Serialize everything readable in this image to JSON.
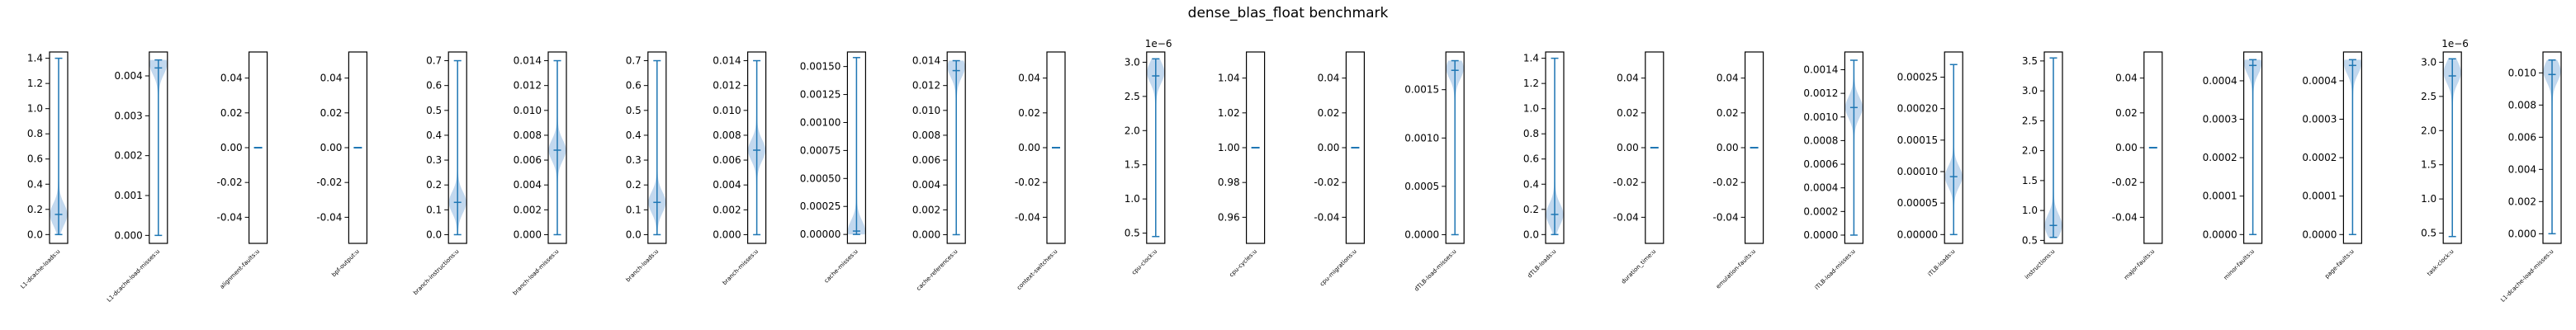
{
  "chart_data": {
    "type": "violin",
    "title": "dense_blas_float benchmark",
    "colors": {
      "violin": "#1f77b4",
      "fill": "#aecbe8",
      "frame": "#000000"
    },
    "panels": [
      {
        "label": "L1-dcache-loads:u",
        "ylim": [
          -0.07,
          1.45
        ],
        "ticks": [
          0.0,
          0.2,
          0.4,
          0.6,
          0.8,
          1.0,
          1.2,
          1.4
        ],
        "tick_labels": [
          "0.0",
          "0.2",
          "0.4",
          "0.6",
          "0.8",
          "1.0",
          "1.2",
          "1.4"
        ],
        "exponent": "",
        "min": 0.0,
        "max": 1.4,
        "median": 0.16,
        "mode": 0.16
      },
      {
        "label": "L1-dcache-load-misses:u",
        "ylim": [
          -0.0002,
          0.0046
        ],
        "ticks": [
          0.0,
          0.001,
          0.002,
          0.003,
          0.004
        ],
        "tick_labels": [
          "0.000",
          "0.001",
          "0.002",
          "0.003",
          "0.004"
        ],
        "exponent": "",
        "min": 0.0,
        "max": 0.0044,
        "median": 0.0042,
        "mode": 0.0043
      },
      {
        "label": "alignment-faults:u",
        "ylim": [
          -0.055,
          0.055
        ],
        "ticks": [
          -0.04,
          -0.02,
          0.0,
          0.02,
          0.04
        ],
        "tick_labels": [
          "-0.04",
          "-0.02",
          "0.00",
          "0.02",
          "0.04"
        ],
        "exponent": "",
        "min": 0.0,
        "max": 0.0,
        "median": 0.0,
        "mode": 0.0
      },
      {
        "label": "bpf-output:u",
        "ylim": [
          -0.055,
          0.055
        ],
        "ticks": [
          -0.04,
          -0.02,
          0.0,
          0.02,
          0.04
        ],
        "tick_labels": [
          "-0.04",
          "-0.02",
          "0.00",
          "0.02",
          "0.04"
        ],
        "exponent": "",
        "min": 0.0,
        "max": 0.0,
        "median": 0.0,
        "mode": 0.0
      },
      {
        "label": "branch-instructions:u",
        "ylim": [
          -0.035,
          0.735
        ],
        "ticks": [
          0.0,
          0.1,
          0.2,
          0.3,
          0.4,
          0.5,
          0.6,
          0.7
        ],
        "tick_labels": [
          "0.0",
          "0.1",
          "0.2",
          "0.3",
          "0.4",
          "0.5",
          "0.6",
          "0.7"
        ],
        "exponent": "",
        "min": 0.0,
        "max": 0.7,
        "median": 0.13,
        "mode": 0.13
      },
      {
        "label": "branch-load-misses:u",
        "ylim": [
          -0.0007,
          0.0147
        ],
        "ticks": [
          0.0,
          0.002,
          0.004,
          0.006,
          0.008,
          0.01,
          0.012,
          0.014
        ],
        "tick_labels": [
          "0.000",
          "0.002",
          "0.004",
          "0.006",
          "0.008",
          "0.010",
          "0.012",
          "0.014"
        ],
        "exponent": "",
        "min": 0.0,
        "max": 0.014,
        "median": 0.0068,
        "mode": 0.0068
      },
      {
        "label": "branch-loads:u",
        "ylim": [
          -0.035,
          0.735
        ],
        "ticks": [
          0.0,
          0.1,
          0.2,
          0.3,
          0.4,
          0.5,
          0.6,
          0.7
        ],
        "tick_labels": [
          "0.0",
          "0.1",
          "0.2",
          "0.3",
          "0.4",
          "0.5",
          "0.6",
          "0.7"
        ],
        "exponent": "",
        "min": 0.0,
        "max": 0.7,
        "median": 0.13,
        "mode": 0.13
      },
      {
        "label": "branch-misses:u",
        "ylim": [
          -0.0007,
          0.0147
        ],
        "ticks": [
          0.0,
          0.002,
          0.004,
          0.006,
          0.008,
          0.01,
          0.012,
          0.014
        ],
        "tick_labels": [
          "0.000",
          "0.002",
          "0.004",
          "0.006",
          "0.008",
          "0.010",
          "0.012",
          "0.014"
        ],
        "exponent": "",
        "min": 0.0,
        "max": 0.014,
        "median": 0.0068,
        "mode": 0.0068
      },
      {
        "label": "cache-misses:u",
        "ylim": [
          -8e-05,
          0.00163
        ],
        "ticks": [
          0.0,
          0.00025,
          0.0005,
          0.00075,
          0.001,
          0.00125,
          0.0015
        ],
        "tick_labels": [
          "0.00000",
          "0.00025",
          "0.00050",
          "0.00075",
          "0.00100",
          "0.00125",
          "0.00150"
        ],
        "exponent": "",
        "min": 0.0,
        "max": 0.00158,
        "median": 3e-05,
        "mode": 3e-05
      },
      {
        "label": "cache-references:u",
        "ylim": [
          -0.0007,
          0.0147
        ],
        "ticks": [
          0.0,
          0.002,
          0.004,
          0.006,
          0.008,
          0.01,
          0.012,
          0.014
        ],
        "tick_labels": [
          "0.000",
          "0.002",
          "0.004",
          "0.006",
          "0.008",
          "0.010",
          "0.012",
          "0.014"
        ],
        "exponent": "",
        "min": 0.0,
        "max": 0.014,
        "median": 0.0132,
        "mode": 0.0135
      },
      {
        "label": "context-switches:u",
        "ylim": [
          -0.055,
          0.055
        ],
        "ticks": [
          -0.04,
          -0.02,
          0.0,
          0.02,
          0.04
        ],
        "tick_labels": [
          "-0.04",
          "-0.02",
          "0.00",
          "0.02",
          "0.04"
        ],
        "exponent": "",
        "min": 0.0,
        "max": 0.0,
        "median": 0.0,
        "mode": 0.0
      },
      {
        "label": "cpu-clock:u",
        "ylim": [
          0.35,
          3.15
        ],
        "ticks": [
          0.5,
          1.0,
          1.5,
          2.0,
          2.5,
          3.0
        ],
        "tick_labels": [
          "0.5",
          "1.0",
          "1.5",
          "2.0",
          "2.5",
          "3.0"
        ],
        "exponent": "1e−6",
        "min": 0.45,
        "max": 3.05,
        "median": 2.8,
        "mode": 2.85
      },
      {
        "label": "cpu-cycles:u",
        "ylim": [
          0.945,
          1.055
        ],
        "ticks": [
          0.96,
          0.98,
          1.0,
          1.02,
          1.04
        ],
        "tick_labels": [
          "0.96",
          "0.98",
          "1.00",
          "1.02",
          "1.04"
        ],
        "exponent": "",
        "min": 1.0,
        "max": 1.0,
        "median": 1.0,
        "mode": 1.0
      },
      {
        "label": "cpu-migrations:u",
        "ylim": [
          -0.055,
          0.055
        ],
        "ticks": [
          -0.04,
          -0.02,
          0.0,
          0.02,
          0.04
        ],
        "tick_labels": [
          "-0.04",
          "-0.02",
          "0.00",
          "0.02",
          "0.04"
        ],
        "exponent": "",
        "min": 0.0,
        "max": 0.0,
        "median": 0.0,
        "mode": 0.0
      },
      {
        "label": "dTLB-load-misses:u",
        "ylim": [
          -9e-05,
          0.00189
        ],
        "ticks": [
          0.0,
          0.0005,
          0.001,
          0.0015
        ],
        "tick_labels": [
          "0.0000",
          "0.0005",
          "0.0010",
          "0.0015"
        ],
        "exponent": "",
        "min": 0.0,
        "max": 0.0018,
        "median": 0.0017,
        "mode": 0.00172
      },
      {
        "label": "dTLB-loads:u",
        "ylim": [
          -0.07,
          1.45
        ],
        "ticks": [
          0.0,
          0.2,
          0.4,
          0.6,
          0.8,
          1.0,
          1.2,
          1.4
        ],
        "tick_labels": [
          "0.0",
          "0.2",
          "0.4",
          "0.6",
          "0.8",
          "1.0",
          "1.2",
          "1.4"
        ],
        "exponent": "",
        "min": 0.0,
        "max": 1.4,
        "median": 0.16,
        "mode": 0.16
      },
      {
        "label": "duration_time:u",
        "ylim": [
          -0.055,
          0.055
        ],
        "ticks": [
          -0.04,
          -0.02,
          0.0,
          0.02,
          0.04
        ],
        "tick_labels": [
          "-0.04",
          "-0.02",
          "0.00",
          "0.02",
          "0.04"
        ],
        "exponent": "",
        "min": 0.0,
        "max": 0.0,
        "median": 0.0,
        "mode": 0.0
      },
      {
        "label": "emulation-faults:u",
        "ylim": [
          -0.055,
          0.055
        ],
        "ticks": [
          -0.04,
          -0.02,
          0.0,
          0.02,
          0.04
        ],
        "tick_labels": [
          "-0.04",
          "-0.02",
          "0.00",
          "0.02",
          "0.04"
        ],
        "exponent": "",
        "min": 0.0,
        "max": 0.0,
        "median": 0.0,
        "mode": 0.0
      },
      {
        "label": "iTLB-load-misses:u",
        "ylim": [
          -7e-05,
          0.00155
        ],
        "ticks": [
          0.0,
          0.0002,
          0.0004,
          0.0006,
          0.0008,
          0.001,
          0.0012,
          0.0014
        ],
        "tick_labels": [
          "0.0000",
          "0.0002",
          "0.0004",
          "0.0006",
          "0.0008",
          "0.0010",
          "0.0012",
          "0.0014"
        ],
        "exponent": "",
        "min": 0.0,
        "max": 0.00148,
        "median": 0.00108,
        "mode": 0.00108
      },
      {
        "label": "iTLB-loads:u",
        "ylim": [
          -1.4e-05,
          0.00029
        ],
        "ticks": [
          0.0,
          5e-05,
          0.0001,
          0.00015,
          0.0002,
          0.00025
        ],
        "tick_labels": [
          "0.00000",
          "0.00005",
          "0.00010",
          "0.00015",
          "0.00020",
          "0.00025"
        ],
        "exponent": "",
        "min": 0.0,
        "max": 0.00027,
        "median": 9.2e-05,
        "mode": 9.2e-05
      },
      {
        "label": "instructions:u",
        "ylim": [
          0.45,
          3.65
        ],
        "ticks": [
          0.5,
          1.0,
          1.5,
          2.0,
          2.5,
          3.0,
          3.5
        ],
        "tick_labels": [
          "0.5",
          "1.0",
          "1.5",
          "2.0",
          "2.5",
          "3.0",
          "3.5"
        ],
        "exponent": "",
        "min": 0.55,
        "max": 3.55,
        "median": 0.75,
        "mode": 0.75
      },
      {
        "label": "major-faults:u",
        "ylim": [
          -0.055,
          0.055
        ],
        "ticks": [
          -0.04,
          -0.02,
          0.0,
          0.02,
          0.04
        ],
        "tick_labels": [
          "-0.04",
          "-0.02",
          "0.00",
          "0.02",
          "0.04"
        ],
        "exponent": "",
        "min": 0.0,
        "max": 0.0,
        "median": 0.0,
        "mode": 0.0
      },
      {
        "label": "minor-faults:u",
        "ylim": [
          -2.3e-05,
          0.000475
        ],
        "ticks": [
          0.0,
          0.0001,
          0.0002,
          0.0003,
          0.0004
        ],
        "tick_labels": [
          "0.0000",
          "0.0001",
          "0.0002",
          "0.0003",
          "0.0004"
        ],
        "exponent": "",
        "min": 0.0,
        "max": 0.000455,
        "median": 0.00044,
        "mode": 0.000445
      },
      {
        "label": "page-faults:u",
        "ylim": [
          -2.3e-05,
          0.000475
        ],
        "ticks": [
          0.0,
          0.0001,
          0.0002,
          0.0003,
          0.0004
        ],
        "tick_labels": [
          "0.0000",
          "0.0001",
          "0.0002",
          "0.0003",
          "0.0004"
        ],
        "exponent": "",
        "min": 0.0,
        "max": 0.000455,
        "median": 0.00044,
        "mode": 0.000445
      },
      {
        "label": "task-clock:u",
        "ylim": [
          0.35,
          3.15
        ],
        "ticks": [
          0.5,
          1.0,
          1.5,
          2.0,
          2.5,
          3.0
        ],
        "tick_labels": [
          "0.5",
          "1.0",
          "1.5",
          "2.0",
          "2.5",
          "3.0"
        ],
        "exponent": "1e−6",
        "min": 0.45,
        "max": 3.05,
        "median": 2.8,
        "mode": 2.85
      },
      {
        "label": "L1-dcache-load-misses:u",
        "ylim": [
          -0.0006,
          0.0113
        ],
        "ticks": [
          0.0,
          0.002,
          0.004,
          0.006,
          0.008,
          0.01
        ],
        "tick_labels": [
          "0.000",
          "0.002",
          "0.004",
          "0.006",
          "0.008",
          "0.010"
        ],
        "exponent": "",
        "min": 0.0,
        "max": 0.0108,
        "median": 0.0099,
        "mode": 0.0101
      }
    ]
  }
}
